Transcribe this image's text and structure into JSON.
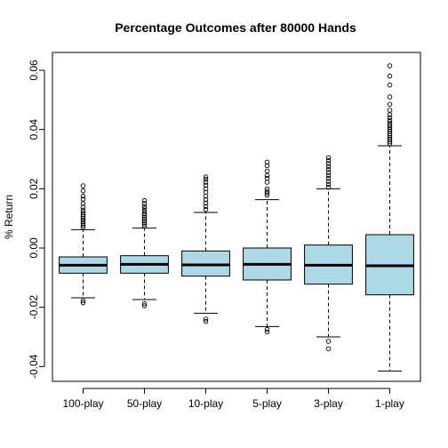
{
  "chart_data": {
    "type": "boxplot",
    "title": "Percentage Outcomes after 80000 Hands",
    "ylabel": "% Return",
    "xlabel": "",
    "ylim": [
      -0.045,
      0.066
    ],
    "yticks": [
      -0.04,
      -0.02,
      0.0,
      0.02,
      0.04,
      0.06
    ],
    "ytick_labels": [
      "-0.04",
      "-0.02",
      "0.00",
      "0.02",
      "0.04",
      "0.06"
    ],
    "categories": [
      "100-play",
      "50-play",
      "10-play",
      "5-play",
      "3-play",
      "1-play"
    ],
    "box_fill": "#add8e6",
    "boxes": [
      {
        "label": "100-play",
        "whisker_low": -0.0168,
        "q1": -0.0085,
        "median": -0.0058,
        "q3": -0.003,
        "whisker_high": 0.0062,
        "outliers": [
          0.021,
          0.0193,
          0.0175,
          0.0165,
          0.015,
          0.0138,
          0.0128,
          0.012,
          0.0113,
          0.0106,
          0.01,
          0.0094,
          0.0088,
          0.0082,
          0.0076,
          0.007,
          -0.0185,
          -0.0178
        ]
      },
      {
        "label": "50-play",
        "whisker_low": -0.0174,
        "q1": -0.0085,
        "median": -0.0055,
        "q3": -0.0026,
        "whisker_high": 0.0067,
        "outliers": [
          0.016,
          0.015,
          0.014,
          0.0132,
          0.0124,
          0.0116,
          0.011,
          0.0104,
          0.0098,
          0.0092,
          0.0086,
          0.008,
          0.0074,
          -0.0195,
          -0.0188
        ]
      },
      {
        "label": "10-play",
        "whisker_low": -0.022,
        "q1": -0.0095,
        "median": -0.0057,
        "q3": -0.001,
        "whisker_high": 0.012,
        "outliers": [
          0.024,
          0.0232,
          0.0222,
          0.0212,
          0.02,
          0.0188,
          0.0175,
          0.0163,
          0.0152,
          0.014,
          0.013,
          -0.024,
          -0.0248
        ]
      },
      {
        "label": "5-play",
        "whisker_low": -0.0265,
        "q1": -0.0108,
        "median": -0.0055,
        "q3": 0.0,
        "whisker_high": 0.0163,
        "outliers": [
          0.029,
          0.0278,
          0.026,
          0.0245,
          0.0235,
          0.0222,
          0.02,
          0.0192,
          0.0185,
          0.0178,
          -0.0275,
          -0.0283
        ]
      },
      {
        "label": "3-play",
        "whisker_low": -0.03,
        "q1": -0.0122,
        "median": -0.0058,
        "q3": 0.001,
        "whisker_high": 0.02,
        "outliers": [
          0.0305,
          0.0295,
          0.0285,
          0.0275,
          0.0265,
          0.0255,
          0.0245,
          0.0235,
          0.0225,
          0.0215,
          0.0205,
          -0.0315,
          -0.034
        ]
      },
      {
        "label": "1-play",
        "whisker_low": -0.0415,
        "q1": -0.0158,
        "median": -0.006,
        "q3": 0.0045,
        "whisker_high": 0.0345,
        "outliers": [
          0.0615,
          0.058,
          0.055,
          0.051,
          0.0485,
          0.0465,
          0.045,
          0.044,
          0.043,
          0.0422,
          0.0415,
          0.0408,
          0.04,
          0.0393,
          0.0386,
          0.038,
          0.0372,
          0.0365,
          0.0358,
          0.0352
        ]
      }
    ]
  }
}
